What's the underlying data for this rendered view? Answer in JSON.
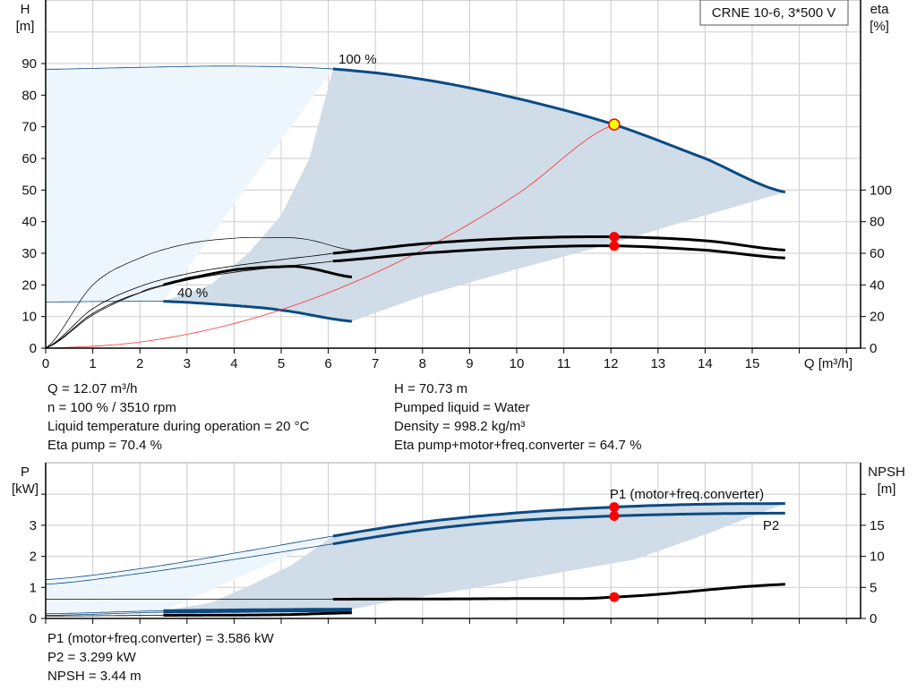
{
  "chart_data": [
    {
      "type": "line",
      "title_box": "CRNE 10-6, 3*500 V",
      "xlabel": "Q [m³/h]",
      "ylabel": [
        "H",
        "[m]"
      ],
      "y2label": [
        "eta",
        "[%]"
      ],
      "xlim": [
        0,
        17.3
      ],
      "ylim": [
        0,
        110
      ],
      "y2lim": [
        0,
        220
      ],
      "xticks": [
        0,
        1,
        2,
        3,
        4,
        5,
        6,
        7,
        8,
        9,
        10,
        11,
        12,
        13,
        14,
        15
      ],
      "yticks": [
        0,
        10,
        20,
        30,
        40,
        50,
        60,
        70,
        80,
        90
      ],
      "y2ticks": [
        0,
        20,
        40,
        60,
        80,
        100
      ],
      "grid": true,
      "colors": {
        "curve": "#0b4a82",
        "eta": "#000000",
        "system": "#ff3030",
        "duty": "#ff0000",
        "duty_fill": "#ffff00",
        "shade_light": "#eef6fd",
        "shade_dark": "#d0dce7"
      },
      "annotations": [
        "100 %",
        "40 %"
      ],
      "series": [
        {
          "id": "h100",
          "axis": "H",
          "x": [
            0,
            2,
            4,
            6.1,
            8,
            10,
            12.07,
            14,
            15.7
          ],
          "y": [
            88.2,
            88.8,
            89.2,
            88.3,
            85,
            79,
            70.73,
            60,
            49.3
          ],
          "thick_from": 6.1
        },
        {
          "id": "h40",
          "axis": "H",
          "x": [
            0,
            2.5,
            4,
            5,
            6.5
          ],
          "y": [
            14.6,
            14.8,
            13.5,
            12,
            8.5
          ],
          "thick_from": 2.5
        },
        {
          "id": "system",
          "axis": "H",
          "x": [
            0,
            2,
            4,
            6,
            8,
            10,
            12.07
          ],
          "y": [
            0,
            1.94,
            7.77,
            17.5,
            31.1,
            48.6,
            70.73
          ]
        },
        {
          "id": "eta_pump100",
          "axis": "eta",
          "x": [
            0,
            1,
            2,
            3,
            4,
            5,
            6.1,
            8,
            10,
            12.07,
            14,
            15.7
          ],
          "y": [
            0,
            25,
            39,
            47,
            52,
            56,
            60,
            66,
            69.5,
            70.4,
            68,
            62
          ],
          "thick_from": 6.1
        },
        {
          "id": "eta_total100",
          "axis": "eta",
          "x": [
            0,
            1,
            2,
            3,
            4,
            5,
            6.1,
            8,
            10,
            12.07,
            14,
            15.7
          ],
          "y": [
            0,
            21,
            35,
            43,
            48,
            51.5,
            55,
            60,
            63.5,
            64.7,
            62,
            57
          ],
          "thick_from": 6.1
        },
        {
          "id": "eta_pump40",
          "axis": "eta",
          "x": [
            0,
            1,
            2,
            3,
            4,
            4.7,
            5.5,
            6.5
          ],
          "y": [
            0,
            40,
            57,
            66,
            69.5,
            70,
            69,
            62
          ]
        },
        {
          "id": "eta_total40",
          "axis": "eta",
          "x": [
            0,
            1,
            2,
            2.5,
            3,
            4,
            5,
            5.5,
            6.5
          ],
          "y": [
            0,
            22,
            35,
            40,
            44,
            49.5,
            51.5,
            51,
            45
          ],
          "thick_from": 2.5
        }
      ],
      "duty_point": {
        "Q": 12.07,
        "H": 70.73,
        "eta_pump": 70.4,
        "eta_total": 64.7
      }
    },
    {
      "type": "line",
      "ylabel": [
        "P",
        "[kW]"
      ],
      "y2label": [
        "NPSH",
        "[m]"
      ],
      "xlim": [
        0,
        17.3
      ],
      "ylim": [
        0,
        5
      ],
      "y2lim": [
        0,
        25
      ],
      "yticks": [
        0,
        1,
        2,
        3
      ],
      "y2ticks": [
        0,
        5,
        10,
        15
      ],
      "grid": true,
      "annotations": [
        "P1 (motor+freq.converter)",
        "P2"
      ],
      "series": [
        {
          "id": "p1_100",
          "axis": "P",
          "x": [
            0,
            2,
            4,
            6.1,
            8,
            10,
            12.07,
            14,
            15.7
          ],
          "y": [
            1.25,
            1.6,
            2.1,
            2.65,
            3.1,
            3.4,
            3.586,
            3.68,
            3.7
          ],
          "thick_from": 6.1
        },
        {
          "id": "p2_100",
          "axis": "P",
          "x": [
            0,
            2,
            4,
            6.1,
            8,
            10,
            12.07,
            14,
            15.7
          ],
          "y": [
            1.1,
            1.45,
            1.9,
            2.4,
            2.85,
            3.15,
            3.299,
            3.37,
            3.39
          ],
          "thick_from": 6.1
        },
        {
          "id": "p1_40",
          "axis": "P",
          "x": [
            0,
            2.5,
            6.5
          ],
          "y": [
            0.15,
            0.25,
            0.3
          ],
          "thick_from": 2.5
        },
        {
          "id": "p2_40",
          "axis": "P",
          "x": [
            0,
            2.5,
            6.5
          ],
          "y": [
            0.1,
            0.2,
            0.25
          ],
          "thick_from": 2.5
        },
        {
          "id": "npsh100",
          "axis": "NPSH",
          "x": [
            0,
            6.1,
            10,
            12.07,
            15.7
          ],
          "y": [
            3.1,
            3.1,
            3.2,
            3.44,
            5.5
          ],
          "thick_from": 6.1
        },
        {
          "id": "npsh40",
          "axis": "NPSH",
          "x": [
            0,
            2.5,
            5,
            6.5
          ],
          "y": [
            0.4,
            0.5,
            0.6,
            0.9
          ],
          "thick_from": 2.5
        }
      ],
      "duty_point": {
        "Q": 12.07,
        "P1": 3.586,
        "P2": 3.299,
        "NPSH": 3.44
      }
    }
  ],
  "info_top_left": [
    "Q = 12.07 m³/h",
    "n = 100 % / 3510 rpm",
    "Liquid temperature during operation = 20 °C",
    "Eta pump = 70.4 %"
  ],
  "info_top_right": [
    "H = 70.73 m",
    "Pumped liquid = Water",
    "Density = 998.2 kg/m³",
    "Eta pump+motor+freq.converter = 64.7 %"
  ],
  "info_bottom": [
    "P1 (motor+freq.converter) = 3.586 kW",
    "P2 = 3.299 kW",
    "NPSH = 3.44 m"
  ]
}
